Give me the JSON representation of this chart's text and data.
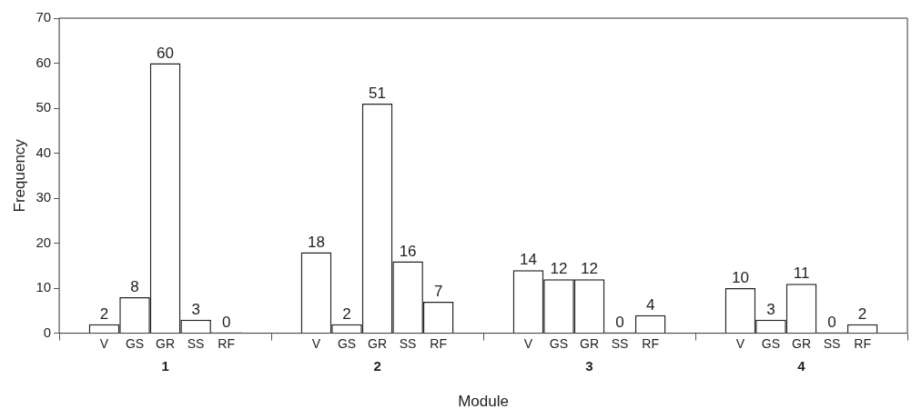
{
  "chart_data": {
    "type": "bar",
    "xlabel": "Module",
    "ylabel": "Frequency",
    "categories": [
      "1",
      "2",
      "3",
      "4"
    ],
    "series": [
      {
        "name": "V",
        "color": "#ffffff",
        "values": [
          2,
          18,
          14,
          10
        ]
      },
      {
        "name": "GS",
        "color": "#ffffff",
        "values": [
          8,
          2,
          12,
          3
        ]
      },
      {
        "name": "GR",
        "color": "#ffffff",
        "values": [
          60,
          51,
          12,
          11
        ]
      },
      {
        "name": "SS",
        "color": "#ffffff",
        "values": [
          3,
          16,
          0,
          0
        ]
      },
      {
        "name": "RF",
        "color": "#ffffff",
        "values": [
          0,
          7,
          4,
          2
        ]
      }
    ],
    "ylim": [
      0,
      70
    ],
    "yticks": [
      0,
      10,
      20,
      30,
      40,
      50,
      60,
      70
    ],
    "grid": false,
    "legend": false,
    "data_labels": true
  }
}
